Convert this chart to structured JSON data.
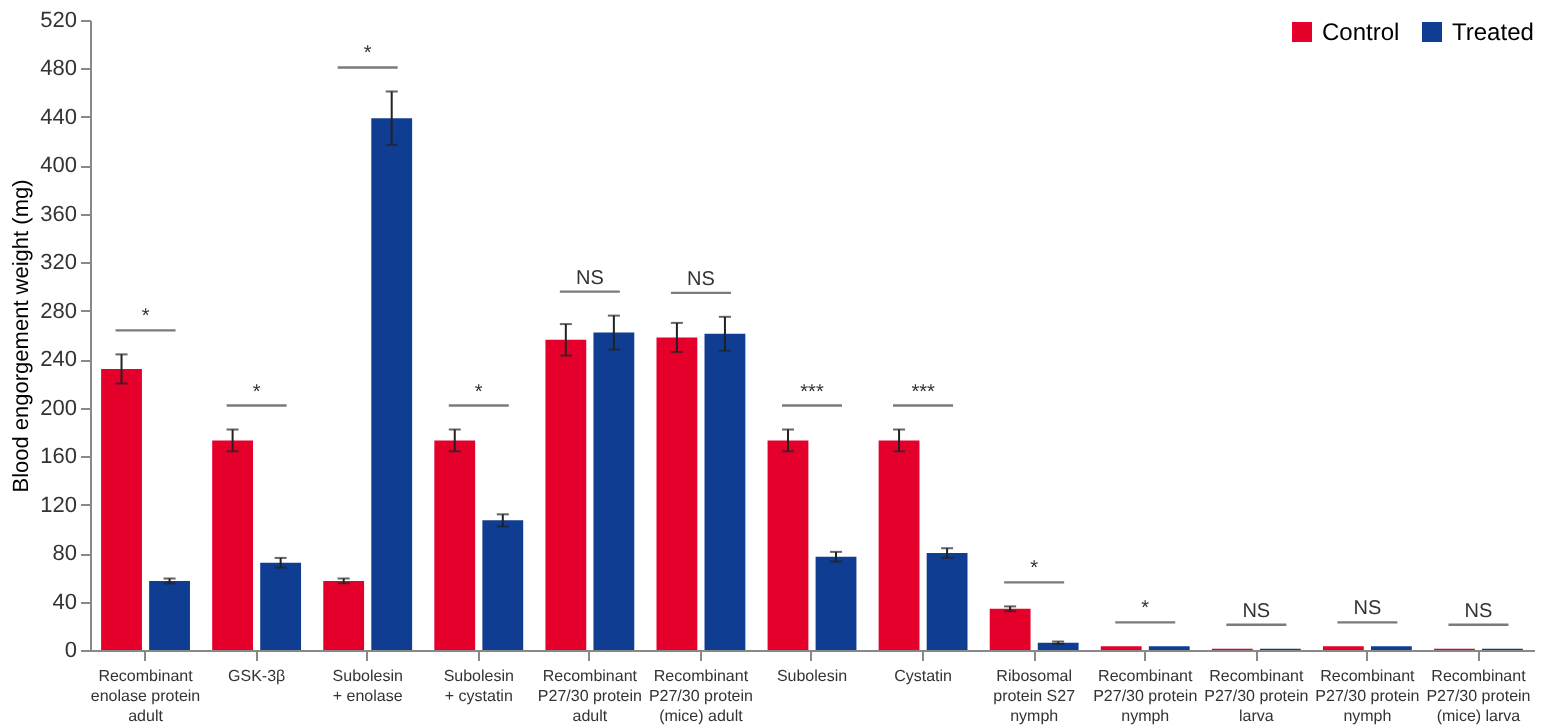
{
  "chart_data": {
    "type": "bar",
    "ylabel": "Blood engorgement weight (mg)",
    "categories": [
      "Recombinant\nenolase protein\nadult",
      "GSK-3β",
      "Subolesin\n+ enolase",
      "Subolesin\n+ cystatin",
      "Recombinant\nP27/30 protein\nadult",
      "Recombinant\nP27/30 protein\n(mice) adult",
      "Subolesin",
      "Cystatin",
      "Ribosomal\nprotein S27\nnymph",
      "Recombinant\nP27/30 protein\nnymph",
      "Recombinant\nP27/30 protein\nlarva",
      "Recombinant\nP27/30 protein\nnymph",
      "Recombinant\nP27/30 protein\n(mice) larva"
    ],
    "series": [
      {
        "name": "Control",
        "color": "#e4002b",
        "values": [
          232,
          173,
          57,
          173,
          256,
          258,
          173,
          173,
          34,
          3,
          1,
          3,
          1
        ],
        "errors": [
          12,
          9,
          2,
          9,
          13,
          12,
          9,
          9,
          2,
          null,
          null,
          null,
          null
        ]
      },
      {
        "name": "Treated",
        "color": "#0f3d91",
        "values": [
          57,
          72,
          439,
          107,
          262,
          261,
          77,
          80,
          6,
          3,
          1,
          3,
          1
        ],
        "errors": [
          2,
          4,
          22,
          5,
          14,
          14,
          4,
          4,
          1,
          null,
          null,
          null,
          null
        ]
      }
    ],
    "ylim": [
      0,
      520
    ],
    "yticks": [
      0,
      40,
      80,
      120,
      160,
      200,
      240,
      280,
      320,
      360,
      400,
      440,
      480,
      520
    ],
    "legend": "top right",
    "grid": false,
    "annotations": [
      "*",
      "*",
      "*",
      "*",
      "NS",
      "NS",
      "***",
      "***",
      "*",
      "*",
      "NS",
      "NS",
      "NS"
    ]
  }
}
